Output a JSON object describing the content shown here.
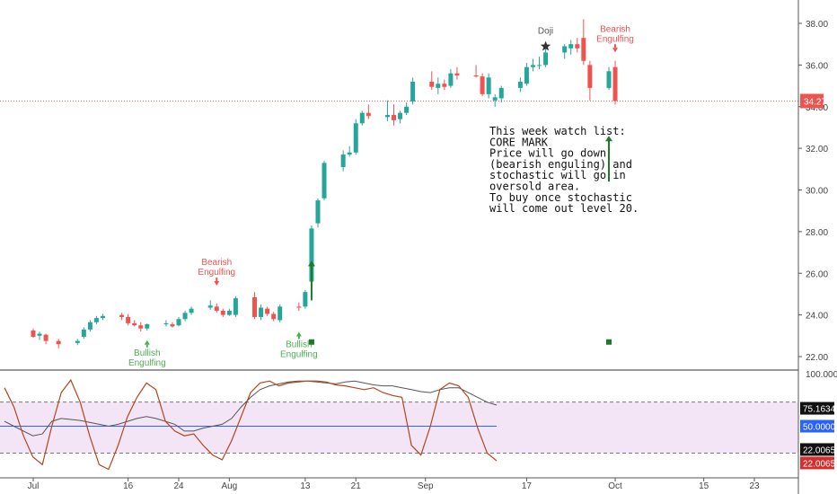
{
  "chart_data": {
    "type": "candlestick",
    "x_axis": {
      "tick_labels": [
        "Jul",
        "16",
        "24",
        "Aug",
        "13",
        "21",
        "Sep",
        "17",
        "Oct",
        "15",
        "23"
      ],
      "tick_dates": [
        "2019-07-01",
        "2019-07-16",
        "2019-07-24",
        "2019-08-01",
        "2019-08-13",
        "2019-08-21",
        "2019-09-01",
        "2019-09-17",
        "2019-10-01",
        "2019-10-15",
        "2019-10-23"
      ]
    },
    "price_axis": {
      "ticks": [
        "22.00",
        "24.00",
        "26.00",
        "28.00",
        "30.00",
        "32.00",
        "34.00",
        "36.00",
        "38.00"
      ],
      "range": [
        21.4,
        39.1
      ]
    },
    "current_price": "34.27",
    "colors": {
      "up": "#26a69a",
      "down": "#ef5350",
      "price_line": "#ef5350",
      "stoch_k": "#b5451b",
      "stoch_d": "#555555",
      "mid_line": "#2962ff",
      "band_fill": "#f3e5f5"
    },
    "candles": [
      {
        "date": "2019-07-01",
        "o": 23.25,
        "h": 23.35,
        "l": 22.9,
        "c": 22.95
      },
      {
        "date": "2019-07-02",
        "o": 23.0,
        "h": 23.2,
        "l": 22.8,
        "c": 23.1
      },
      {
        "date": "2019-07-03",
        "o": 23.05,
        "h": 23.1,
        "l": 22.6,
        "c": 22.75
      },
      {
        "date": "2019-07-05",
        "o": 22.75,
        "h": 22.85,
        "l": 22.4,
        "c": 22.6
      },
      {
        "date": "2019-07-08",
        "o": 22.65,
        "h": 22.85,
        "l": 22.55,
        "c": 22.75
      },
      {
        "date": "2019-07-09",
        "o": 22.95,
        "h": 23.4,
        "l": 22.85,
        "c": 23.3
      },
      {
        "date": "2019-07-10",
        "o": 23.3,
        "h": 23.75,
        "l": 23.2,
        "c": 23.65
      },
      {
        "date": "2019-07-11",
        "o": 23.65,
        "h": 23.95,
        "l": 23.55,
        "c": 23.85
      },
      {
        "date": "2019-07-12",
        "o": 23.85,
        "h": 24.05,
        "l": 23.75,
        "c": 23.95
      },
      {
        "date": "2019-07-15",
        "o": 24.0,
        "h": 24.1,
        "l": 23.75,
        "c": 23.9
      },
      {
        "date": "2019-07-16",
        "o": 23.9,
        "h": 24.05,
        "l": 23.5,
        "c": 23.6
      },
      {
        "date": "2019-07-17",
        "o": 23.6,
        "h": 23.75,
        "l": 23.45,
        "c": 23.5
      },
      {
        "date": "2019-07-18",
        "o": 23.5,
        "h": 23.65,
        "l": 23.2,
        "c": 23.35
      },
      {
        "date": "2019-07-19",
        "o": 23.35,
        "h": 23.6,
        "l": 23.25,
        "c": 23.55
      },
      {
        "date": "2019-07-22",
        "o": 23.55,
        "h": 23.75,
        "l": 23.45,
        "c": 23.6
      },
      {
        "date": "2019-07-23",
        "o": 23.55,
        "h": 23.65,
        "l": 23.4,
        "c": 23.45
      },
      {
        "date": "2019-07-24",
        "o": 23.5,
        "h": 23.9,
        "l": 23.45,
        "c": 23.8
      },
      {
        "date": "2019-07-25",
        "o": 23.8,
        "h": 24.2,
        "l": 23.7,
        "c": 24.1
      },
      {
        "date": "2019-07-26",
        "o": 24.1,
        "h": 24.4,
        "l": 24.0,
        "c": 24.3
      },
      {
        "date": "2019-07-29",
        "o": 24.35,
        "h": 24.7,
        "l": 24.25,
        "c": 24.45
      },
      {
        "date": "2019-07-30",
        "o": 24.4,
        "h": 24.55,
        "l": 24.1,
        "c": 24.2
      },
      {
        "date": "2019-07-31",
        "o": 24.2,
        "h": 24.3,
        "l": 23.9,
        "c": 24.0
      },
      {
        "date": "2019-08-01",
        "o": 24.0,
        "h": 24.3,
        "l": 23.95,
        "c": 24.2
      },
      {
        "date": "2019-08-02",
        "o": 24.0,
        "h": 24.9,
        "l": 23.9,
        "c": 24.8
      },
      {
        "date": "2019-08-05",
        "o": 24.85,
        "h": 25.1,
        "l": 23.8,
        "c": 23.9
      },
      {
        "date": "2019-08-06",
        "o": 23.9,
        "h": 24.5,
        "l": 23.75,
        "c": 24.35
      },
      {
        "date": "2019-08-07",
        "o": 24.3,
        "h": 24.4,
        "l": 23.95,
        "c": 24.05
      },
      {
        "date": "2019-08-08",
        "o": 24.05,
        "h": 24.15,
        "l": 23.7,
        "c": 23.8
      },
      {
        "date": "2019-08-09",
        "o": 23.75,
        "h": 24.5,
        "l": 23.65,
        "c": 24.4
      },
      {
        "date": "2019-08-12",
        "o": 24.4,
        "h": 24.6,
        "l": 24.2,
        "c": 24.35
      },
      {
        "date": "2019-08-13",
        "o": 24.4,
        "h": 25.2,
        "l": 24.3,
        "c": 25.1
      },
      {
        "date": "2019-08-14",
        "o": 25.6,
        "h": 28.3,
        "l": 25.5,
        "c": 28.15
      },
      {
        "date": "2019-08-15",
        "o": 28.4,
        "h": 29.6,
        "l": 28.2,
        "c": 29.5
      },
      {
        "date": "2019-08-16",
        "o": 29.6,
        "h": 31.4,
        "l": 29.5,
        "c": 31.3
      },
      {
        "date": "2019-08-19",
        "o": 31.1,
        "h": 31.9,
        "l": 30.9,
        "c": 31.7
      },
      {
        "date": "2019-08-20",
        "o": 31.7,
        "h": 32.1,
        "l": 31.6,
        "c": 31.8
      },
      {
        "date": "2019-08-21",
        "o": 31.8,
        "h": 33.4,
        "l": 31.7,
        "c": 33.2
      },
      {
        "date": "2019-08-22",
        "o": 33.2,
        "h": 33.8,
        "l": 33.1,
        "c": 33.7
      },
      {
        "date": "2019-08-23",
        "o": 33.7,
        "h": 34.1,
        "l": 33.4,
        "c": 33.55
      },
      {
        "date": "2019-08-26",
        "o": 33.5,
        "h": 34.3,
        "l": 33.3,
        "c": 33.6
      },
      {
        "date": "2019-08-27",
        "o": 33.6,
        "h": 34.1,
        "l": 33.1,
        "c": 33.35
      },
      {
        "date": "2019-08-28",
        "o": 33.4,
        "h": 33.8,
        "l": 33.2,
        "c": 33.7
      },
      {
        "date": "2019-08-29",
        "o": 33.7,
        "h": 34.2,
        "l": 33.6,
        "c": 34.0
      },
      {
        "date": "2019-08-30",
        "o": 34.25,
        "h": 35.4,
        "l": 34.1,
        "c": 35.2
      },
      {
        "date": "2019-09-02",
        "o": 35.2,
        "h": 35.7,
        "l": 34.8,
        "c": 34.95
      },
      {
        "date": "2019-09-03",
        "o": 34.9,
        "h": 35.4,
        "l": 34.6,
        "c": 35.1
      },
      {
        "date": "2019-09-04",
        "o": 35.1,
        "h": 35.3,
        "l": 34.8,
        "c": 34.95
      },
      {
        "date": "2019-09-05",
        "o": 35.0,
        "h": 35.8,
        "l": 34.9,
        "c": 35.6
      },
      {
        "date": "2019-09-06",
        "o": 35.6,
        "h": 35.9,
        "l": 35.3,
        "c": 35.5
      },
      {
        "date": "2019-09-09",
        "o": 35.5,
        "h": 36.0,
        "l": 35.4,
        "c": 35.45
      },
      {
        "date": "2019-09-10",
        "o": 35.45,
        "h": 35.6,
        "l": 34.5,
        "c": 34.6
      },
      {
        "date": "2019-09-11",
        "o": 34.6,
        "h": 35.6,
        "l": 34.4,
        "c": 35.4
      },
      {
        "date": "2019-09-12",
        "o": 34.3,
        "h": 34.6,
        "l": 34.0,
        "c": 34.45
      },
      {
        "date": "2019-09-13",
        "o": 34.4,
        "h": 35.0,
        "l": 34.2,
        "c": 34.9
      },
      {
        "date": "2019-09-16",
        "o": 34.9,
        "h": 35.4,
        "l": 34.7,
        "c": 35.2
      },
      {
        "date": "2019-09-17",
        "o": 35.1,
        "h": 36.1,
        "l": 35.0,
        "c": 35.9
      },
      {
        "date": "2019-09-18",
        "o": 35.9,
        "h": 36.3,
        "l": 35.7,
        "c": 36.0
      },
      {
        "date": "2019-09-19",
        "o": 36.0,
        "h": 36.4,
        "l": 35.8,
        "c": 36.0
      },
      {
        "date": "2019-09-20",
        "o": 36.0,
        "h": 36.8,
        "l": 35.9,
        "c": 36.6
      },
      {
        "date": "2019-09-23",
        "o": 36.6,
        "h": 37.0,
        "l": 36.3,
        "c": 36.9
      },
      {
        "date": "2019-09-24",
        "o": 36.8,
        "h": 37.2,
        "l": 36.5,
        "c": 37.0
      },
      {
        "date": "2019-09-25",
        "o": 37.0,
        "h": 37.3,
        "l": 36.6,
        "c": 36.8
      },
      {
        "date": "2019-09-26",
        "o": 37.3,
        "h": 38.2,
        "l": 36.0,
        "c": 36.2
      },
      {
        "date": "2019-09-27",
        "o": 36.0,
        "h": 36.2,
        "l": 34.3,
        "c": 34.9
      },
      {
        "date": "2019-09-30",
        "o": 34.9,
        "h": 35.9,
        "l": 34.8,
        "c": 35.7
      },
      {
        "date": "2019-10-01",
        "o": 35.9,
        "h": 36.2,
        "l": 34.1,
        "c": 34.27
      }
    ],
    "annotations": [
      {
        "text": "Bearish\nEngulfing",
        "date": "2019-07-30",
        "price": 26.4,
        "color": "#ef5350",
        "marker": "down-arrow"
      },
      {
        "text": "Bullish\nEngulfing",
        "date": "2019-07-19",
        "price": 22.7,
        "color": "#4caf50",
        "marker": "up-arrow"
      },
      {
        "text": "Bullish\nEngulfing",
        "date": "2019-08-12",
        "price": 23.1,
        "color": "#4caf50",
        "marker": "up-arrow"
      },
      {
        "text": "Doji",
        "date": "2019-09-20",
        "price": 37.5,
        "color": "#555555",
        "marker": "star"
      },
      {
        "text": "Bearish\nEngulfing",
        "date": "2019-10-01",
        "price": 37.6,
        "color": "#ef5350",
        "marker": "down-arrow"
      }
    ],
    "arrows": [
      {
        "date": "2019-08-14",
        "from": 24.7,
        "to": 26.6,
        "color": "#1b7a2b"
      },
      {
        "date": "2019-09-30",
        "from": 30.4,
        "to": 32.6,
        "color": "#1b7a2b"
      }
    ],
    "markers": [
      {
        "date": "2019-08-14",
        "price": 22.7,
        "color": "#1b7a2b"
      },
      {
        "date": "2019-09-30",
        "price": 22.7,
        "color": "#1b7a2b"
      }
    ],
    "note": {
      "lines": [
        "This week watch list:",
        "CORE MARK",
        "Price will go down",
        "(bearish enguling) and",
        "stochastic will go in",
        "oversold area.",
        "To buy once stochastic",
        "will come out level 20."
      ]
    },
    "stochastic": {
      "levels": {
        "upper": 75.1634,
        "middle": 50.0,
        "lower": 22.0065,
        "top": 100.0
      },
      "labels": {
        "upper": "75.1634",
        "middle": "50.0000",
        "lower_k": "22.0065",
        "lower_d": "22.0065",
        "top": "100.0000"
      },
      "k_values": [
        90,
        70,
        40,
        18,
        10,
        50,
        85,
        98,
        75,
        40,
        10,
        5,
        30,
        60,
        80,
        95,
        88,
        55,
        45,
        40,
        42,
        30,
        20,
        15,
        35,
        60,
        85,
        95,
        97,
        92,
        95,
        96,
        97,
        97,
        96,
        93,
        92,
        90,
        88,
        90,
        85,
        82,
        80,
        30,
        20,
        50,
        88,
        95,
        92,
        80,
        48,
        22,
        14
      ],
      "d_values": [
        55,
        50,
        45,
        40,
        42,
        55,
        58,
        57,
        56,
        54,
        52,
        50,
        52,
        55,
        58,
        60,
        58,
        55,
        52,
        45,
        45,
        48,
        50,
        52,
        58,
        70,
        80,
        88,
        92,
        94,
        96,
        97,
        97,
        96,
        95,
        94,
        96,
        97,
        95,
        93,
        92,
        92,
        90,
        88,
        86,
        85,
        88,
        90,
        90,
        85,
        80,
        75,
        72
      ]
    }
  }
}
